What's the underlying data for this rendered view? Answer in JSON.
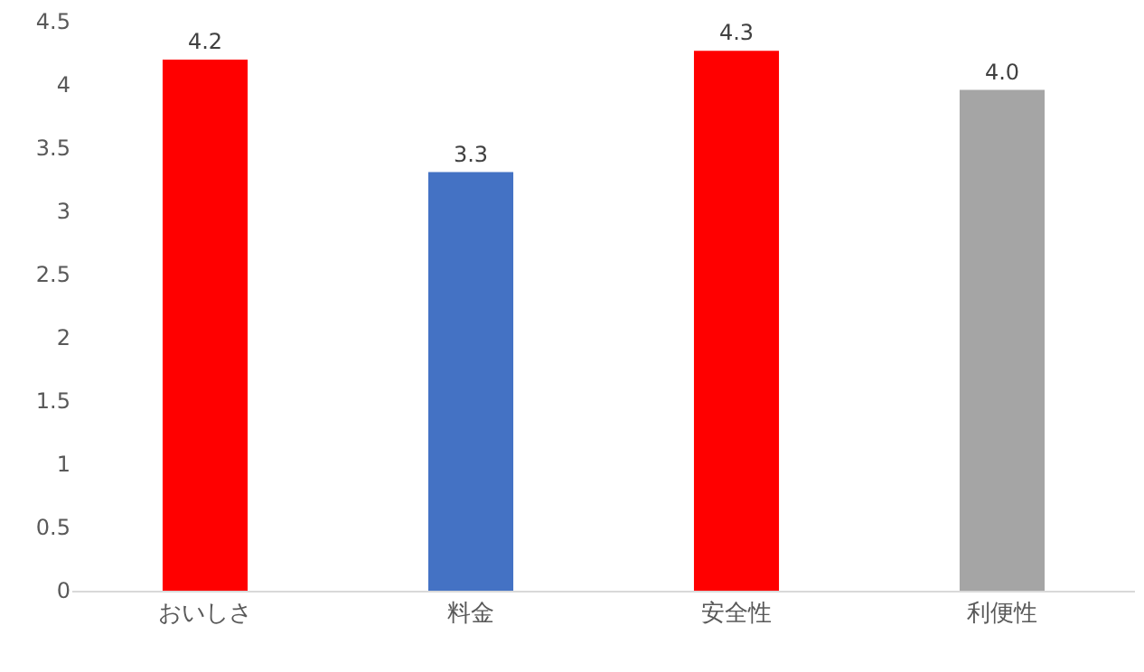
{
  "chart_data": {
    "type": "bar",
    "categories": [
      "おいしさ",
      "料金",
      "安全性",
      "利便性"
    ],
    "values": [
      4.2,
      3.31,
      4.27,
      3.96
    ],
    "value_labels": [
      "4.2",
      "3.3",
      "4.3",
      "4.0"
    ],
    "colors": [
      "#ff0000",
      "#4472c4",
      "#ff0000",
      "#a5a5a5"
    ],
    "ylim": [
      0,
      4.5
    ],
    "yticks": [
      0,
      0.5,
      1,
      1.5,
      2,
      2.5,
      3,
      3.5,
      4,
      4.5
    ],
    "grid": false,
    "legend": false
  }
}
